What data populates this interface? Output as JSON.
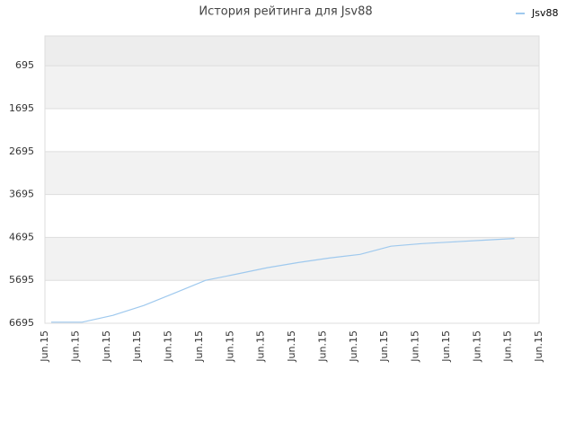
{
  "chart_data": {
    "type": "line",
    "title": "История рейтинга для Jsv88",
    "categories": [
      "Jun.15",
      "Jun.15",
      "Jun.15",
      "Jun.15",
      "Jun.15",
      "Jun.15",
      "Jun.15",
      "Jun.15",
      "Jun.15",
      "Jun.15",
      "Jun.15",
      "Jun.15",
      "Jun.15",
      "Jun.15",
      "Jun.15",
      "Jun.15",
      "Jun.15"
    ],
    "series": [
      {
        "name": "Jsv88",
        "color": "#9fc9ee",
        "values": [
          6670,
          6670,
          6510,
          6280,
          5990,
          5695,
          5550,
          5400,
          5280,
          5175,
          5090,
          4900,
          4840,
          4800,
          4760,
          4720,
          null
        ]
      }
    ],
    "ylim": [
      6695,
      0
    ],
    "yticks": [
      695,
      1695,
      2695,
      3695,
      4695,
      5695,
      6695
    ],
    "grid": true,
    "legend": "top-right"
  }
}
